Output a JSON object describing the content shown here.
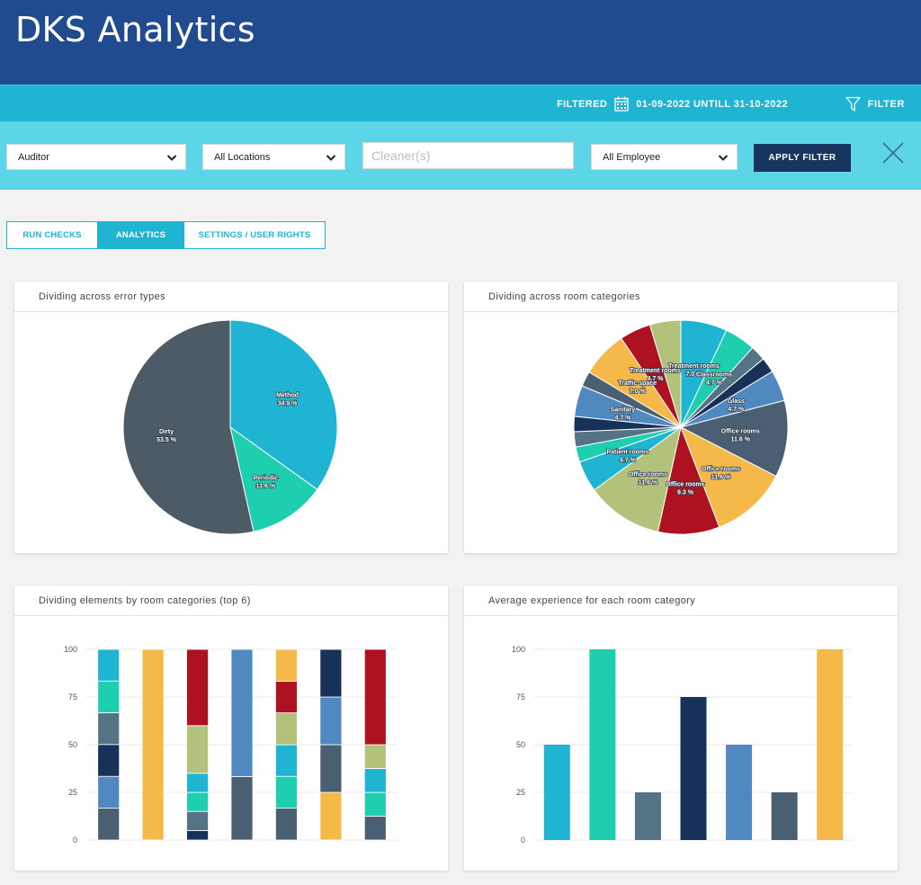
{
  "app": {
    "title": "DKS Analytics"
  },
  "filter_bar": {
    "filtered_label": "FILTERED",
    "date_range": "01-09-2022 UNTILL 31-10-2022",
    "filter_label": "FILTER",
    "icons": {
      "calendar": "calendar-icon",
      "funnel": "funnel-icon"
    }
  },
  "filters": {
    "role_select": "Auditor",
    "location_select": "All Locations",
    "cleaner_placeholder": "Cleaner(s)",
    "employee_select": "All Employee",
    "apply_label": "APPLY FILTER"
  },
  "tabs": [
    {
      "label": "RUN CHECKS",
      "active": false
    },
    {
      "label": "ANALYTICS",
      "active": true
    },
    {
      "label": "SETTINGS / USER RIGHTS",
      "active": false
    }
  ],
  "colors": {
    "header": "#214b8f",
    "accent": "#1fb4d2",
    "panel": "#5dd5e9",
    "button": "#183560",
    "palette": {
      "cyan": "#1fb4d2",
      "teal": "#1dcfae",
      "slate": "#547384",
      "navy": "#173159",
      "blue": "#4f89c0",
      "grey": "#4a5f72",
      "yellow": "#f5b94a",
      "red": "#ae1120",
      "olive": "#b2c27b",
      "dark": "#4c5b66"
    }
  },
  "charts": [
    {
      "title": "Dividing across error types",
      "chart_data": {
        "type": "pie",
        "slices": [
          {
            "label": "Method",
            "value": 34.9,
            "text": "34.9 %",
            "color": "#1fb4d2"
          },
          {
            "label": "Periodic",
            "value": 11.6,
            "text": "11.6 %",
            "color": "#1dcfae"
          },
          {
            "label": "Dirty",
            "value": 53.5,
            "text": "53.5 %",
            "color": "#4c5b66"
          }
        ]
      }
    },
    {
      "title": "Dividing across room categories",
      "chart_data": {
        "type": "pie",
        "slices": [
          {
            "label": "Treatment rooms",
            "value": 7.0,
            "text": "7.0 %",
            "color": "#1fb4d2"
          },
          {
            "label": "Classrooms",
            "value": 4.7,
            "text": "4.7 %",
            "color": "#1dcfae"
          },
          {
            "label": "",
            "value": 2.3,
            "text": "",
            "color": "#547384"
          },
          {
            "label": "",
            "value": 2.3,
            "text": "",
            "color": "#173159"
          },
          {
            "label": "Glass",
            "value": 4.7,
            "text": "4.7 %",
            "color": "#4f89c0"
          },
          {
            "label": "Office rooms",
            "value": 11.6,
            "text": "11.6 %",
            "color": "#4a5f72"
          },
          {
            "label": "Office rooms",
            "value": 11.6,
            "text": "11.6 %",
            "color": "#f5b94a"
          },
          {
            "label": "Office rooms",
            "value": 9.3,
            "text": "9.3 %",
            "color": "#ae1120"
          },
          {
            "label": "Office rooms",
            "value": 11.6,
            "text": "11.6 %",
            "color": "#b2c27b"
          },
          {
            "label": "Patient rooms",
            "value": 4.7,
            "text": "4.7 %",
            "color": "#1fb4d2"
          },
          {
            "label": "",
            "value": 2.3,
            "text": "",
            "color": "#1dcfae"
          },
          {
            "label": "",
            "value": 2.3,
            "text": "",
            "color": "#547384"
          },
          {
            "label": "",
            "value": 2.3,
            "text": "",
            "color": "#173159"
          },
          {
            "label": "Sanitary",
            "value": 4.7,
            "text": "4.7 %",
            "color": "#4f89c0"
          },
          {
            "label": "",
            "value": 2.3,
            "text": "",
            "color": "#4a5f72"
          },
          {
            "label": "Traffic space",
            "value": 7.0,
            "text": "7.0 %",
            "color": "#f5b94a"
          },
          {
            "label": "Treatment rooms",
            "value": 4.7,
            "text": "4.7 %",
            "color": "#ae1120"
          },
          {
            "label": "",
            "value": 4.7,
            "text": "",
            "color": "#b2c27b"
          }
        ]
      }
    },
    {
      "title": "Dividing elements by room categories (top 6)",
      "chart_data": {
        "type": "bar",
        "stacked": true,
        "ylim": [
          0,
          100
        ],
        "yticks": [
          0,
          25,
          50,
          75,
          100
        ],
        "bars": [
          [
            {
              "value": 16.7,
              "color": "#4a5f72"
            },
            {
              "value": 16.7,
              "color": "#4f89c0"
            },
            {
              "value": 16.7,
              "color": "#173159"
            },
            {
              "value": 16.7,
              "color": "#547384"
            },
            {
              "value": 16.6,
              "color": "#1dcfae"
            },
            {
              "value": 16.6,
              "color": "#1fb4d2"
            }
          ],
          [
            {
              "value": 100,
              "color": "#f5b94a"
            }
          ],
          [
            {
              "value": 5,
              "color": "#173159"
            },
            {
              "value": 10,
              "color": "#547384"
            },
            {
              "value": 10,
              "color": "#1dcfae"
            },
            {
              "value": 10,
              "color": "#1fb4d2"
            },
            {
              "value": 25,
              "color": "#b2c27b"
            },
            {
              "value": 40,
              "color": "#ae1120"
            }
          ],
          [
            {
              "value": 33.3,
              "color": "#4a5f72"
            },
            {
              "value": 66.7,
              "color": "#4f89c0"
            }
          ],
          [
            {
              "value": 16.7,
              "color": "#4a5f72"
            },
            {
              "value": 16.7,
              "color": "#1dcfae"
            },
            {
              "value": 16.6,
              "color": "#1fb4d2"
            },
            {
              "value": 16.7,
              "color": "#b2c27b"
            },
            {
              "value": 16.6,
              "color": "#ae1120"
            },
            {
              "value": 16.7,
              "color": "#f5b94a"
            }
          ],
          [
            {
              "value": 25,
              "color": "#f5b94a"
            },
            {
              "value": 25,
              "color": "#4a5f72"
            },
            {
              "value": 25,
              "color": "#4f89c0"
            },
            {
              "value": 25,
              "color": "#173159"
            }
          ],
          [
            {
              "value": 12.5,
              "color": "#4a5f72"
            },
            {
              "value": 12.5,
              "color": "#1dcfae"
            },
            {
              "value": 12.5,
              "color": "#1fb4d2"
            },
            {
              "value": 12.5,
              "color": "#b2c27b"
            },
            {
              "value": 50,
              "color": "#ae1120"
            }
          ]
        ]
      }
    },
    {
      "title": "Average experience for each room category",
      "chart_data": {
        "type": "bar",
        "ylim": [
          0,
          100
        ],
        "yticks": [
          0,
          25,
          50,
          75,
          100
        ],
        "values": [
          50,
          100,
          25,
          75,
          50,
          25,
          100
        ],
        "colors": [
          "#1fb4d2",
          "#1dcfae",
          "#547384",
          "#173159",
          "#4f89c0",
          "#4a5f72",
          "#f5b94a"
        ]
      }
    }
  ]
}
